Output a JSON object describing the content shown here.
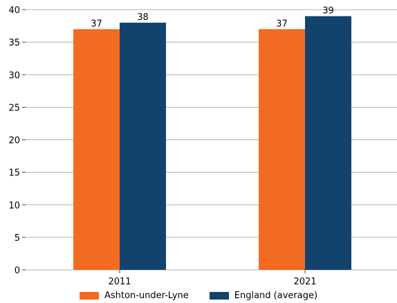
{
  "chart_data": {
    "type": "bar",
    "title": "",
    "xlabel": "",
    "ylabel": "",
    "categories": [
      "2011",
      "2021"
    ],
    "series": [
      {
        "name": "Ashton-under-Lyne",
        "values": [
          37,
          37
        ],
        "color": "#f26b21"
      },
      {
        "name": "England (average)",
        "values": [
          38,
          39
        ],
        "color": "#12436d"
      }
    ],
    "ylim": [
      0,
      40
    ],
    "yticks": [
      "0",
      "5",
      "10",
      "15",
      "20",
      "25",
      "30",
      "35",
      "40"
    ],
    "grid": true,
    "legend_position": "bottom"
  }
}
